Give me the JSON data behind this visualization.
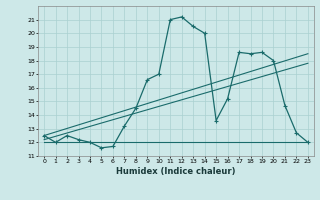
{
  "xlabel": "Humidex (Indice chaleur)",
  "xlim": [
    -0.5,
    23.5
  ],
  "ylim": [
    11,
    22
  ],
  "yticks": [
    11,
    12,
    13,
    14,
    15,
    16,
    17,
    18,
    19,
    20,
    21
  ],
  "xticks": [
    0,
    1,
    2,
    3,
    4,
    5,
    6,
    7,
    8,
    9,
    10,
    11,
    12,
    13,
    14,
    15,
    16,
    17,
    18,
    19,
    20,
    21,
    22,
    23
  ],
  "bg_color": "#cde8e8",
  "grid_color": "#aad0d0",
  "line_color": "#1a6b6b",
  "series1_x": [
    0,
    1,
    2,
    3,
    4,
    5,
    6,
    7,
    8,
    9,
    10,
    11,
    12,
    13,
    14,
    15,
    16,
    17,
    18,
    19,
    20,
    21,
    22,
    23
  ],
  "series1_y": [
    12.5,
    12.0,
    12.5,
    12.2,
    12.0,
    11.6,
    11.7,
    13.2,
    14.5,
    16.6,
    17.0,
    21.0,
    21.2,
    20.5,
    20.0,
    13.6,
    15.2,
    18.6,
    18.5,
    18.6,
    18.0,
    14.7,
    12.7,
    12.0
  ],
  "series2_x": [
    0,
    14,
    23
  ],
  "series2_y": [
    12.0,
    12.0,
    12.0
  ],
  "series3_x": [
    0,
    23
  ],
  "series3_y": [
    12.5,
    18.5
  ],
  "series4_x": [
    0,
    23
  ],
  "series4_y": [
    12.2,
    17.8
  ]
}
